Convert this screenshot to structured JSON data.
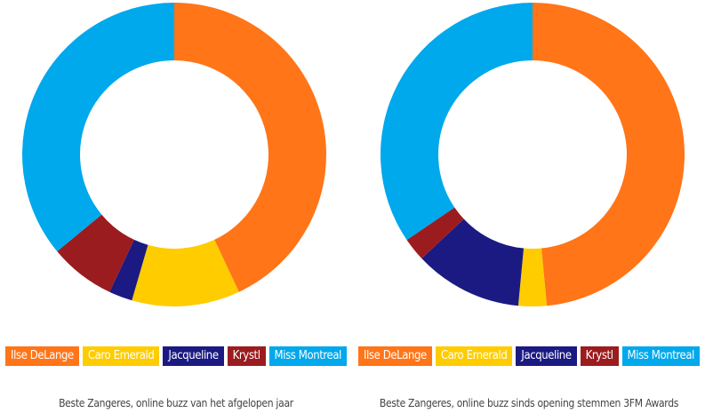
{
  "chart_data": [
    {
      "type": "pie",
      "donut": true,
      "title": "Beste Zangeres, online buzz van het afgelopen jaar",
      "categories": [
        "Ilse DeLange",
        "Caro Emerald",
        "Jacqueline",
        "Krystl",
        "Miss Montreal"
      ],
      "values": [
        43,
        11.5,
        2.5,
        7,
        36
      ],
      "colors": [
        "#ff7518",
        "#ffcc00",
        "#1a1a82",
        "#9b1c1f",
        "#00a8ec"
      ],
      "legend": "bottom"
    },
    {
      "type": "pie",
      "donut": true,
      "title": "Beste Zangeres, online buzz sinds opening stemmen 3FM Awards",
      "categories": [
        "Ilse DeLange",
        "Caro Emerald",
        "Jacqueline",
        "Krystl",
        "Miss Montreal"
      ],
      "values": [
        48.5,
        3,
        11.5,
        2.5,
        34.5
      ],
      "colors": [
        "#ff7518",
        "#ffcc00",
        "#1a1a82",
        "#9b1c1f",
        "#00a8ec"
      ],
      "legend": "bottom"
    }
  ]
}
